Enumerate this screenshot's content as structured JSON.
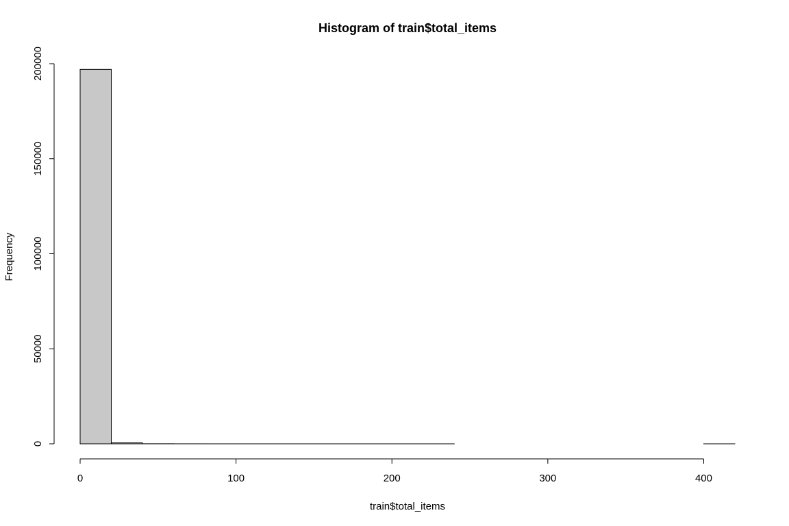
{
  "chart_data": {
    "type": "bar",
    "title": "Histogram of train$total_items",
    "xlabel": "train$total_items",
    "ylabel": "Frequency",
    "bin_edges": [
      0,
      20,
      40,
      60,
      80,
      100,
      120,
      140,
      160,
      180,
      200,
      220,
      240,
      260,
      280,
      300,
      320,
      340,
      360,
      380,
      400,
      420
    ],
    "values": [
      197000,
      500,
      40,
      10,
      5,
      3,
      2,
      1,
      1,
      1,
      1,
      1,
      0,
      0,
      0,
      0,
      0,
      0,
      0,
      0,
      1
    ],
    "xlim": [
      0,
      420
    ],
    "ylim": [
      0,
      200000
    ],
    "x_ticks": [
      0,
      100,
      200,
      300,
      400
    ],
    "y_ticks": [
      0,
      50000,
      100000,
      150000,
      200000
    ],
    "bar_color": "#c8c8c8",
    "grid": false,
    "legend": "none"
  }
}
